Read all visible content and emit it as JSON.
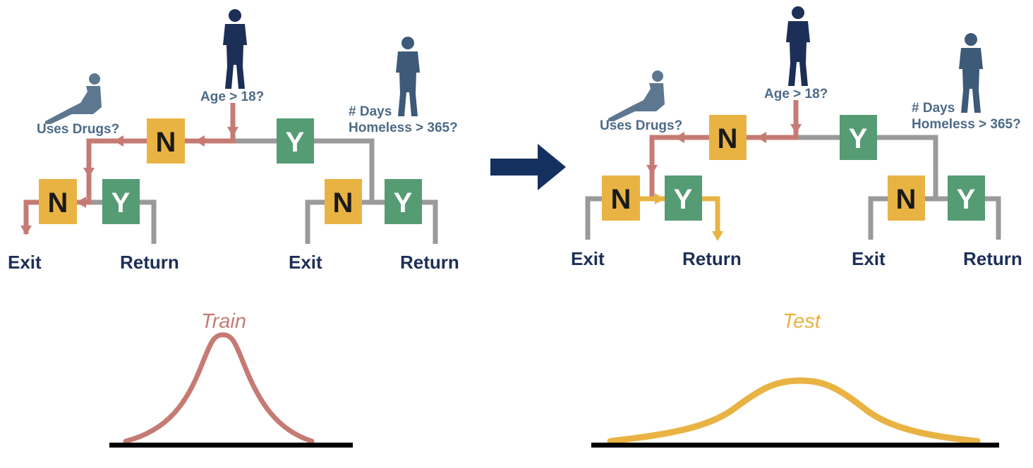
{
  "colors": {
    "no_box": "#e9b344",
    "yes_box": "#559b73",
    "train_path": "#c57b74",
    "test_path": "#e9b344",
    "neutral_path": "#9a9a9a",
    "leaf_text": "#1c2f57",
    "question_text": "#4d6a87",
    "arrow": "#14305e"
  },
  "icons": [
    "person-standing-icon",
    "person-sitting-icon",
    "person-standing-icon",
    "arrow-right-icon"
  ],
  "trees": [
    {
      "id": "train",
      "root_question": "Age > 18?",
      "left_question": "Uses Drugs?",
      "right_question_line1": "# Days",
      "right_question_line2": "Homeless > 365?",
      "no_label": "N",
      "yes_label": "Y",
      "leaf_exit": "Exit",
      "leaf_return": "Return"
    },
    {
      "id": "test",
      "root_question": "Age > 18?",
      "left_question": "Uses Drugs?",
      "right_question_line1": "# Days",
      "right_question_line2": "Homeless > 365?",
      "no_label": "N",
      "yes_label": "Y",
      "leaf_exit": "Exit",
      "leaf_return": "Return"
    }
  ],
  "distributions": {
    "train_label": "Train",
    "test_label": "Test"
  }
}
